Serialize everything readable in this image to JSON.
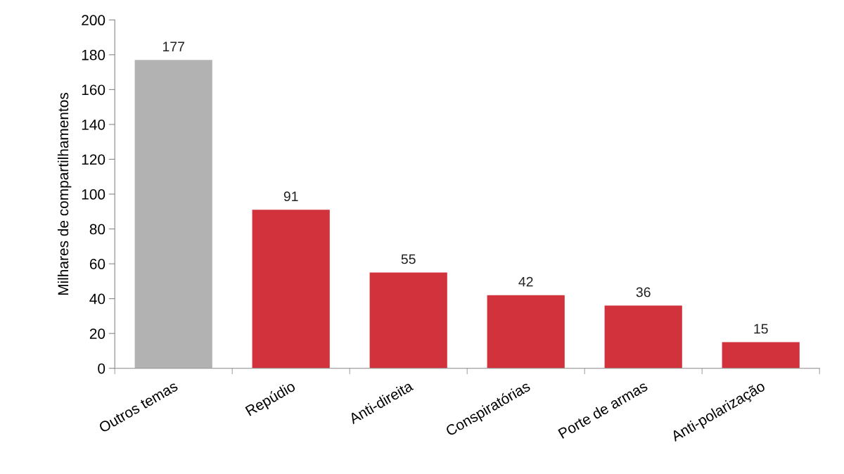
{
  "chart_data": {
    "type": "bar",
    "ylabel": "Milhares de compartilhamentos",
    "categories": [
      "Outros temas",
      "Repúdio",
      "Anti-direita",
      "Conspiratórias",
      "Porte de armas",
      "Anti-polarização"
    ],
    "values": [
      177,
      91,
      55,
      42,
      36,
      15
    ],
    "colors": [
      "#b2b2b2",
      "#d2323c",
      "#d2323c",
      "#d2323c",
      "#d2323c",
      "#d2323c"
    ],
    "ylim": [
      0,
      200
    ],
    "yticks": [
      0,
      20,
      40,
      60,
      80,
      100,
      120,
      140,
      160,
      180,
      200
    ],
    "data_labels": true,
    "grid": false,
    "legend": false
  }
}
